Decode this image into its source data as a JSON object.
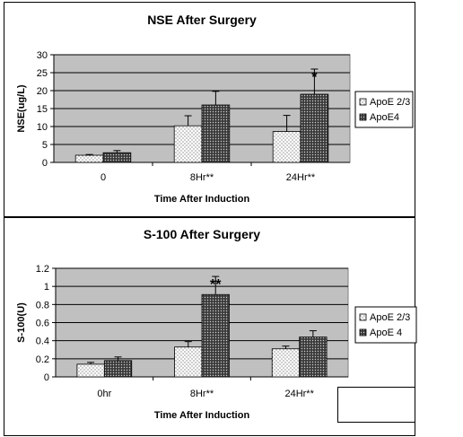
{
  "chart_data": [
    {
      "type": "bar",
      "title": "NSE After Surgery",
      "xlabel": "Time After Induction",
      "ylabel": "NSE(ug/L)",
      "categories": [
        "0",
        "8Hr**",
        "24Hr**"
      ],
      "ylim": [
        0,
        30
      ],
      "yticks": [
        0,
        5,
        10,
        15,
        20,
        25,
        30
      ],
      "grid": true,
      "legend": "right",
      "series": [
        {
          "name": "ApoE 2/3",
          "values": [
            2.0,
            10.2,
            8.6
          ],
          "errors": [
            0.2,
            2.8,
            4.5
          ],
          "pattern": "dots-light"
        },
        {
          "name": "ApoE4",
          "values": [
            2.7,
            16.0,
            19.0
          ],
          "errors": [
            0.6,
            3.8,
            7.0
          ],
          "pattern": "dots-dark"
        }
      ],
      "annotations": [
        {
          "text": "*",
          "category": "24Hr**",
          "series": "ApoE4"
        }
      ]
    },
    {
      "type": "bar",
      "title": "S-100 After Surgery",
      "xlabel": "Time After Induction",
      "ylabel": "S-100(U)",
      "categories": [
        "0hr",
        "8Hr**",
        "24Hr**"
      ],
      "ylim": [
        0,
        1.2
      ],
      "yticks": [
        0,
        0.2,
        0.4,
        0.6,
        0.8,
        1,
        1.2
      ],
      "grid": true,
      "legend": "right",
      "series": [
        {
          "name": "ApoE 2/3",
          "values": [
            0.14,
            0.33,
            0.31
          ],
          "errors": [
            0.02,
            0.06,
            0.03
          ],
          "pattern": "dots-light"
        },
        {
          "name": "ApoE 4",
          "values": [
            0.18,
            0.91,
            0.44
          ],
          "errors": [
            0.04,
            0.2,
            0.07
          ],
          "pattern": "dots-dark"
        }
      ],
      "annotations": [
        {
          "text": "**",
          "category": "8Hr**",
          "series": "ApoE 4"
        }
      ]
    }
  ],
  "colors": {
    "plot_background": "#c0c0c0",
    "light_bar": "#ffffff",
    "dark_bar": "#3a3a3a",
    "gridline": "#000000"
  }
}
